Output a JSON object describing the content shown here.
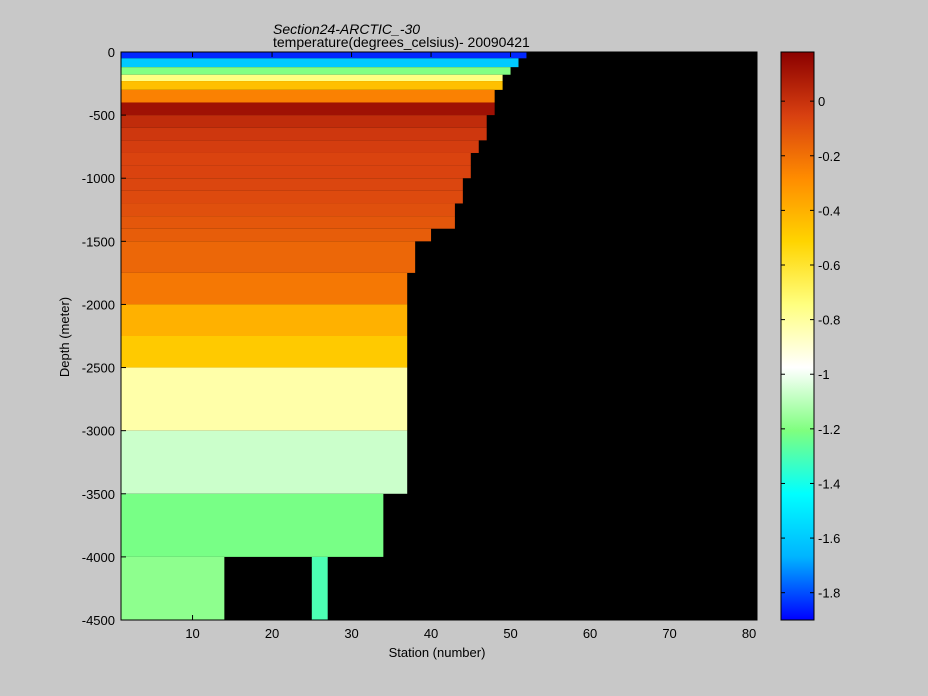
{
  "chart_data": {
    "type": "heatmap",
    "title": "Section24-ARCTIC_-30",
    "subtitle": "temperature(degrees_celsius)- 20090421",
    "xlabel": "Station (number)",
    "ylabel": "Depth (meter)",
    "xlim": [
      1,
      81
    ],
    "ylim": [
      -4500,
      0
    ],
    "x_ticks": [
      10,
      20,
      30,
      40,
      50,
      60,
      70,
      80
    ],
    "y_ticks": [
      0,
      -500,
      -1000,
      -1500,
      -2000,
      -2500,
      -3000,
      -3500,
      -4000,
      -4500
    ],
    "colorbar": {
      "range": [
        -1.9,
        0.18
      ],
      "ticks": [
        0,
        -0.2,
        -0.4,
        -0.6,
        -0.8,
        -1,
        -1.2,
        -1.4,
        -1.6,
        -1.8
      ],
      "colors": [
        "#0000ff",
        "#00b4ff",
        "#00ffff",
        "#7fff7f",
        "#ffffff",
        "#ffff7f",
        "#ffd400",
        "#ff8c00",
        "#d84010",
        "#8b0000"
      ]
    },
    "missing_color": "#000000",
    "layers": [
      {
        "from": 0,
        "to": -50,
        "value": -1.85,
        "extent": 52
      },
      {
        "from": -50,
        "to": -120,
        "value": -1.6,
        "extent": 51
      },
      {
        "from": -120,
        "to": -180,
        "value": -1.2,
        "extent": 50
      },
      {
        "from": -180,
        "to": -230,
        "value": -0.75,
        "extent": 49
      },
      {
        "from": -230,
        "to": -300,
        "value": -0.45,
        "extent": 49
      },
      {
        "from": -300,
        "to": -400,
        "value": -0.25,
        "extent": 48
      },
      {
        "from": -400,
        "to": -500,
        "value": 0.12,
        "extent": 48
      },
      {
        "from": -500,
        "to": -600,
        "value": 0.02,
        "extent": 47
      },
      {
        "from": -600,
        "to": -700,
        "value": -0.02,
        "extent": 47
      },
      {
        "from": -700,
        "to": -800,
        "value": -0.04,
        "extent": 46
      },
      {
        "from": -800,
        "to": -900,
        "value": -0.06,
        "extent": 45
      },
      {
        "from": -900,
        "to": -1000,
        "value": -0.06,
        "extent": 45
      },
      {
        "from": -1000,
        "to": -1100,
        "value": -0.07,
        "extent": 44
      },
      {
        "from": -1100,
        "to": -1200,
        "value": -0.08,
        "extent": 44
      },
      {
        "from": -1200,
        "to": -1300,
        "value": -0.1,
        "extent": 43
      },
      {
        "from": -1300,
        "to": -1400,
        "value": -0.12,
        "extent": 43
      },
      {
        "from": -1400,
        "to": -1500,
        "value": -0.14,
        "extent": 40
      },
      {
        "from": -1500,
        "to": -1750,
        "value": -0.17,
        "extent": 38
      },
      {
        "from": -1750,
        "to": -2000,
        "value": -0.22,
        "extent": 37
      },
      {
        "from": -2000,
        "to": -2250,
        "value": -0.4,
        "extent": 37
      },
      {
        "from": -2250,
        "to": -2500,
        "value": -0.48,
        "extent": 37
      },
      {
        "from": -2500,
        "to": -3000,
        "value": -0.82,
        "extent": 37
      },
      {
        "from": -3000,
        "to": -3500,
        "value": -1.07,
        "extent": 37
      },
      {
        "from": -3500,
        "to": -4000,
        "value": -1.22,
        "extent": 34
      },
      {
        "from": -4000,
        "to": -4500,
        "value": -1.18,
        "extent": 14
      }
    ],
    "deep_patch": {
      "from": -4000,
      "to": -4500,
      "x0": 25,
      "x1": 27,
      "value": -1.3
    }
  }
}
